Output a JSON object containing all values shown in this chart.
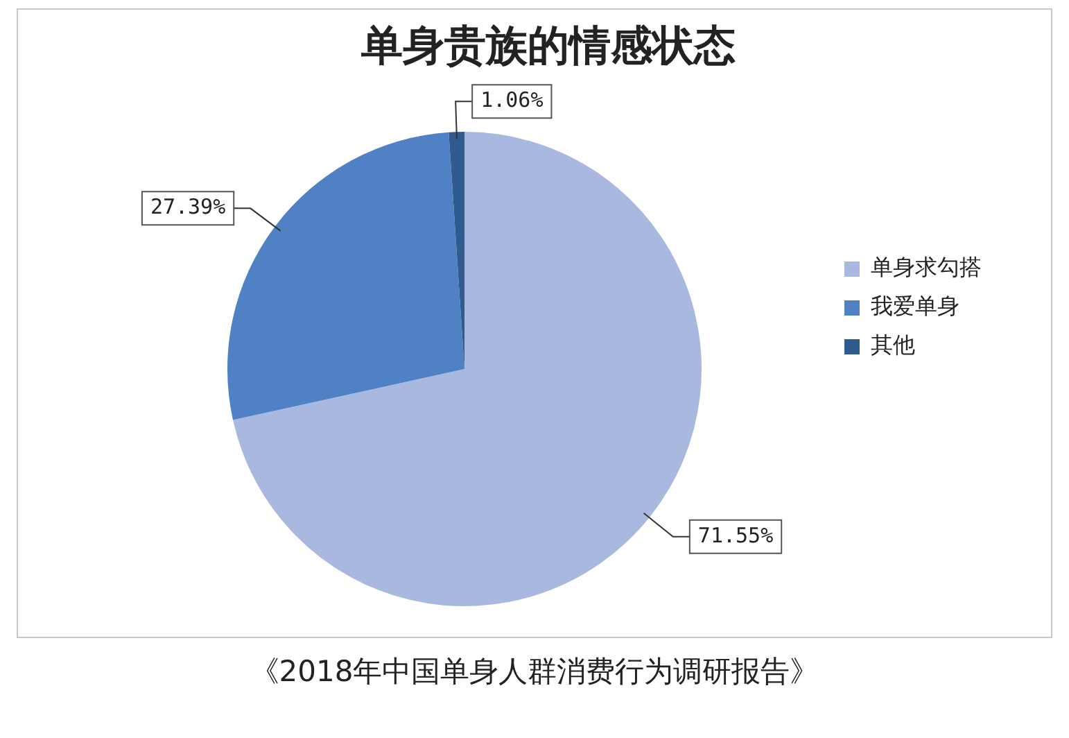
{
  "chart_data": {
    "type": "pie",
    "title": "单身贵族的情感状态",
    "categories": [
      "单身求勾搭",
      "我爱单身",
      "其他"
    ],
    "values": [
      71.55,
      27.39,
      1.06
    ],
    "value_labels": [
      "71.55%",
      "27.39%",
      "1.06%"
    ],
    "colors": [
      "#a9b8de",
      "#4f81c4",
      "#2f5b8f"
    ],
    "legend": "right",
    "annotations": [
      "《2018年中国单身人群消费行为调研报告》"
    ]
  }
}
